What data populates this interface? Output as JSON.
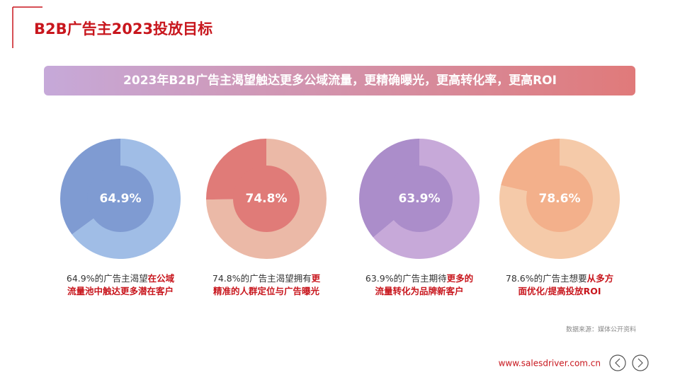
{
  "header": {
    "title": "B2B广告主2023投放目标"
  },
  "banner": "2023年B2B广告主渴望触达更多公域流量，更精确曝光，更高转化率，更高ROI",
  "chart_data": [
    {
      "type": "pie",
      "values": [
        64.9,
        35.1
      ],
      "value_labels": [
        "64.9%",
        null
      ],
      "colors": [
        "#a0bde6",
        "#7f9bd2"
      ],
      "caption": [
        [
          {
            "text": "64.9%的广告主渴望",
            "bold": false
          },
          {
            "text": "在公域",
            "bold": true
          }
        ],
        [
          {
            "text": "流量池中触达更多潜在客户",
            "bold": true
          }
        ]
      ]
    },
    {
      "type": "pie",
      "values": [
        74.8,
        25.2
      ],
      "value_labels": [
        "74.8%",
        null
      ],
      "colors": [
        "#ebb9a7",
        "#e07b78"
      ],
      "caption": [
        [
          {
            "text": "74.8%的广告主渴望拥有",
            "bold": false
          },
          {
            "text": "更",
            "bold": true
          }
        ],
        [
          {
            "text": "精准的人群定位与广告曝光",
            "bold": true
          }
        ]
      ]
    },
    {
      "type": "pie",
      "values": [
        63.9,
        36.1
      ],
      "value_labels": [
        "63.9%",
        null
      ],
      "colors": [
        "#c7a9d9",
        "#ab8dca"
      ],
      "caption": [
        [
          {
            "text": "63.9%的广告主期待",
            "bold": false
          },
          {
            "text": "更多的",
            "bold": true
          }
        ],
        [
          {
            "text": "流量转化为品牌新客户",
            "bold": true
          }
        ]
      ]
    },
    {
      "type": "pie",
      "values": [
        78.6,
        21.4
      ],
      "value_labels": [
        "78.6%",
        null
      ],
      "colors": [
        "#f5caa9",
        "#f3b08b"
      ],
      "caption": [
        [
          {
            "text": "78.6%的广告主想要",
            "bold": false
          },
          {
            "text": "从多方",
            "bold": true
          }
        ],
        [
          {
            "text": "面优化/提高投放ROI",
            "bold": true
          }
        ]
      ]
    }
  ],
  "source": "数据来源：媒体公开资料",
  "url": "www.salesdriver.com.cn"
}
